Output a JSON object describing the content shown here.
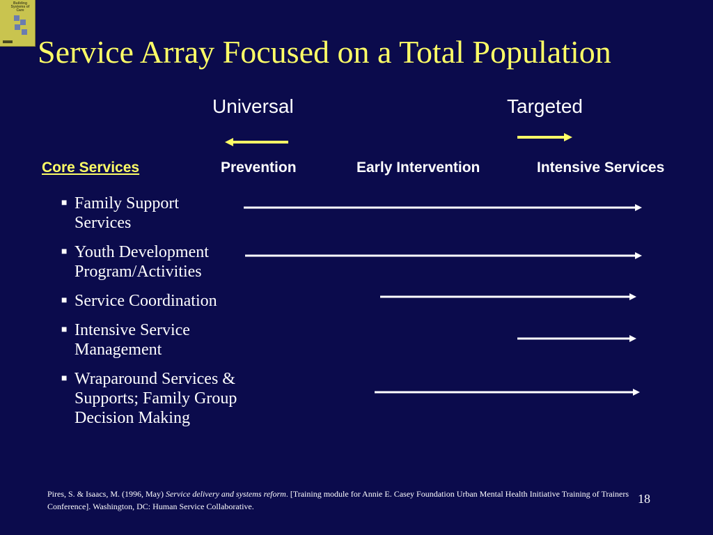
{
  "slide": {
    "title": "Service Array Focused on a Total Population",
    "logo_text": "Building Systems of Care",
    "direction_labels": {
      "left": "Universal",
      "right": "Targeted"
    },
    "columns": {
      "core": "Core Services",
      "prevention": "Prevention",
      "early": "Early Intervention",
      "intensive": "Intensive Services"
    },
    "services": [
      {
        "text": "Family Support Services"
      },
      {
        "text": "Youth Development Program/Activities"
      },
      {
        "text": "Service Coordination"
      },
      {
        "text": "Intensive Service Management"
      },
      {
        "text": "Wraparound Services & Supports; Family Group Decision Making"
      }
    ],
    "citation": {
      "before": "Pires, S. & Isaacs, M. (1996, May) ",
      "italic": "Service delivery and systems reform",
      "after": ". [Training module for Annie E. Casey Foundation Urban Mental Health Initiative Training of Trainers Conference]. Washington, DC: Human Service Collaborative."
    },
    "page_number": "18",
    "colors": {
      "background": "#0b0b4c",
      "title": "#ffff66",
      "text": "#ffffff",
      "accent_arrow": "#ffff66"
    }
  }
}
